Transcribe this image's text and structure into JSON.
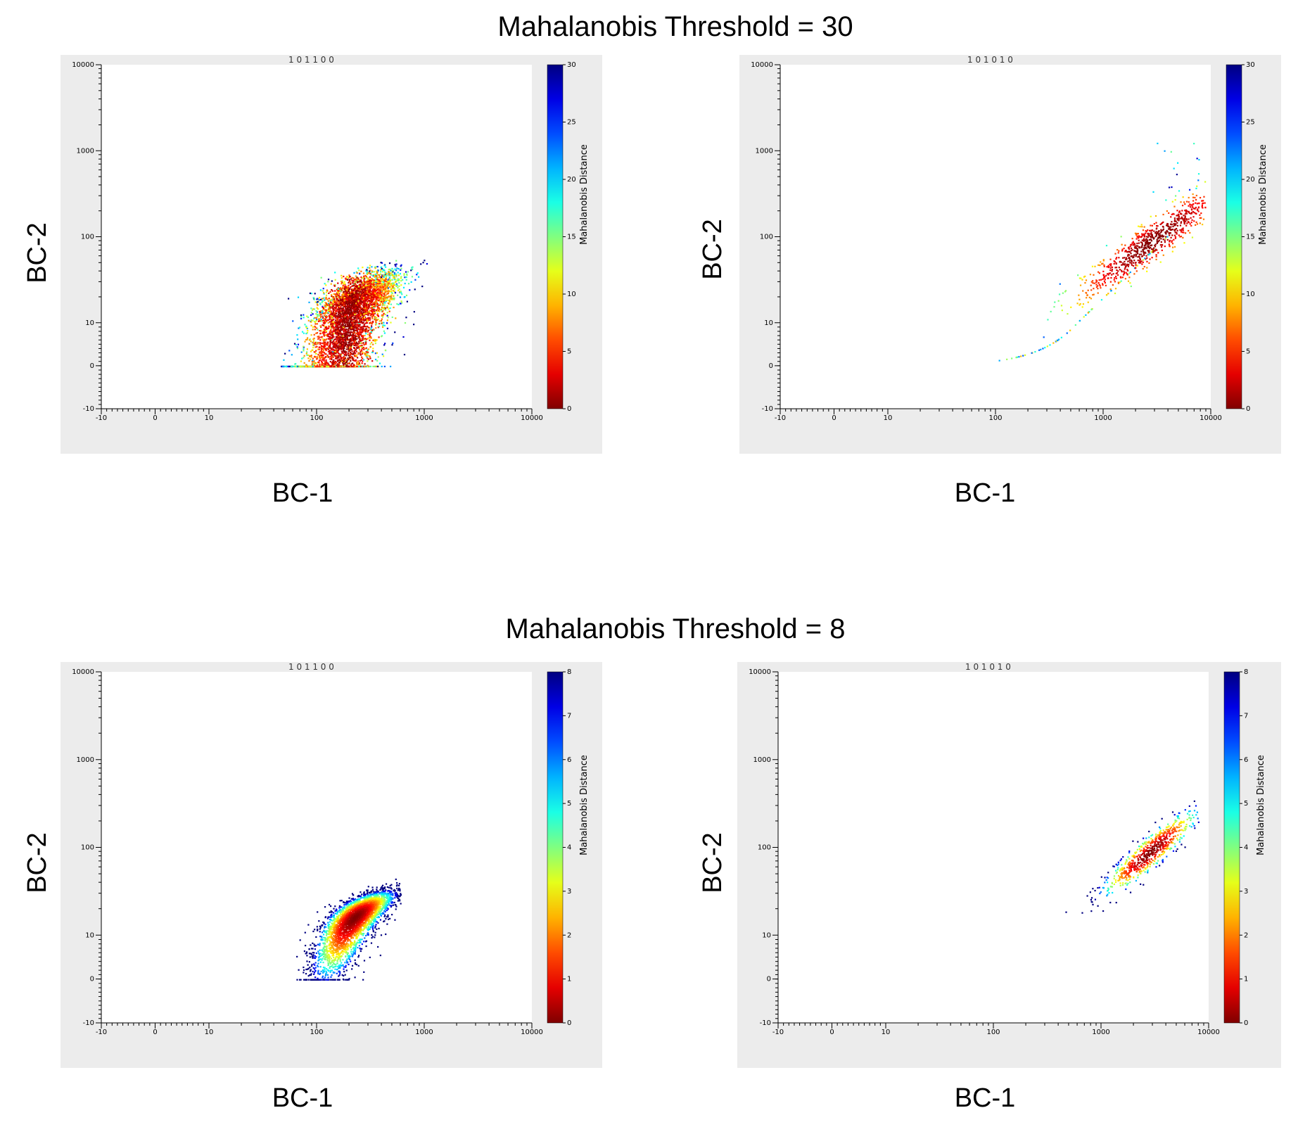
{
  "sections": [
    {
      "title": "Mahalanobis Threshold = 30"
    },
    {
      "title": "Mahalanobis Threshold = 8"
    }
  ],
  "axis_labels": {
    "x": "BC-1",
    "y": "BC-2"
  },
  "colorbar_label": "Mahalanobis Distance",
  "chart_data": [
    {
      "type": "scatter",
      "panel_title": "1 0 1 1 0 0",
      "xlabel": "BC-1",
      "ylabel": "BC-2",
      "x_scale": "log-ish (biexponential)",
      "y_scale": "log-ish (biexponential)",
      "xlim": [
        -10,
        10000
      ],
      "ylim": [
        -10,
        10000
      ],
      "x_ticks": [
        "-10",
        "0",
        "10",
        "100",
        "1000",
        "10000"
      ],
      "y_ticks": [
        "-10",
        "0",
        "10",
        "100",
        "1000",
        "10000"
      ],
      "colorbar": {
        "label": "Mahalanobis Distance",
        "min": 0,
        "max": 30,
        "ticks": [
          0,
          5,
          10,
          15,
          20,
          25,
          30
        ]
      },
      "cluster": {
        "x_range": [
          50,
          950
        ],
        "y_range": [
          0,
          150
        ],
        "center": [
          200,
          12
        ]
      },
      "color_scheme": "jet (reversed: red=0, blue=max)"
    },
    {
      "type": "scatter",
      "panel_title": "1 0 1 0 1 0",
      "xlabel": "BC-1",
      "ylabel": "BC-2",
      "x_scale": "log-ish (biexponential)",
      "y_scale": "log-ish (biexponential)",
      "xlim": [
        -10,
        10000
      ],
      "ylim": [
        -10,
        10000
      ],
      "x_ticks": [
        "-10",
        "0",
        "10",
        "100",
        "1000",
        "10000"
      ],
      "y_ticks": [
        "-10",
        "0",
        "10",
        "100",
        "1000",
        "10000"
      ],
      "colorbar": {
        "label": "Mahalanobis Distance",
        "min": 0,
        "max": 30,
        "ticks": [
          0,
          5,
          10,
          15,
          20,
          25,
          30
        ]
      },
      "cluster": {
        "x_range": [
          100,
          8000
        ],
        "y_range": [
          0,
          1500
        ],
        "center": [
          3000,
          90
        ]
      },
      "color_scheme": "jet (reversed: red=0, blue=max)"
    },
    {
      "type": "scatter",
      "panel_title": "1 0 1 1 0 0",
      "xlabel": "BC-1",
      "ylabel": "BC-2",
      "x_scale": "log-ish (biexponential)",
      "y_scale": "log-ish (biexponential)",
      "xlim": [
        -10,
        10000
      ],
      "ylim": [
        -10,
        10000
      ],
      "x_ticks": [
        "-10",
        "0",
        "10",
        "100",
        "1000",
        "10000"
      ],
      "y_ticks": [
        "-10",
        "0",
        "10",
        "100",
        "1000",
        "10000"
      ],
      "colorbar": {
        "label": "Mahalanobis Distance",
        "min": 0,
        "max": 8,
        "ticks": [
          0,
          1,
          2,
          3,
          4,
          5,
          6,
          7,
          8
        ]
      },
      "cluster": {
        "x_range": [
          70,
          550
        ],
        "y_range": [
          0,
          55
        ],
        "center": [
          220,
          15
        ]
      },
      "color_scheme": "jet (reversed: red=0, blue=max)"
    },
    {
      "type": "scatter",
      "panel_title": "1 0 1 0 1 0",
      "xlabel": "BC-1",
      "ylabel": "BC-2",
      "x_scale": "log-ish (biexponential)",
      "y_scale": "log-ish (biexponential)",
      "xlim": [
        -10,
        10000
      ],
      "ylim": [
        -10,
        10000
      ],
      "x_ticks": [
        "-10",
        "0",
        "10",
        "100",
        "1000",
        "10000"
      ],
      "y_ticks": [
        "-10",
        "0",
        "10",
        "100",
        "1000",
        "10000"
      ],
      "colorbar": {
        "label": "Mahalanobis Distance",
        "min": 0,
        "max": 8,
        "ticks": [
          0,
          1,
          2,
          3,
          4,
          5,
          6,
          7,
          8
        ]
      },
      "cluster": {
        "x_range": [
          500,
          7500
        ],
        "y_range": [
          10,
          260
        ],
        "center": [
          3000,
          90
        ]
      },
      "color_scheme": "jet (reversed: red=0, blue=max)"
    }
  ]
}
